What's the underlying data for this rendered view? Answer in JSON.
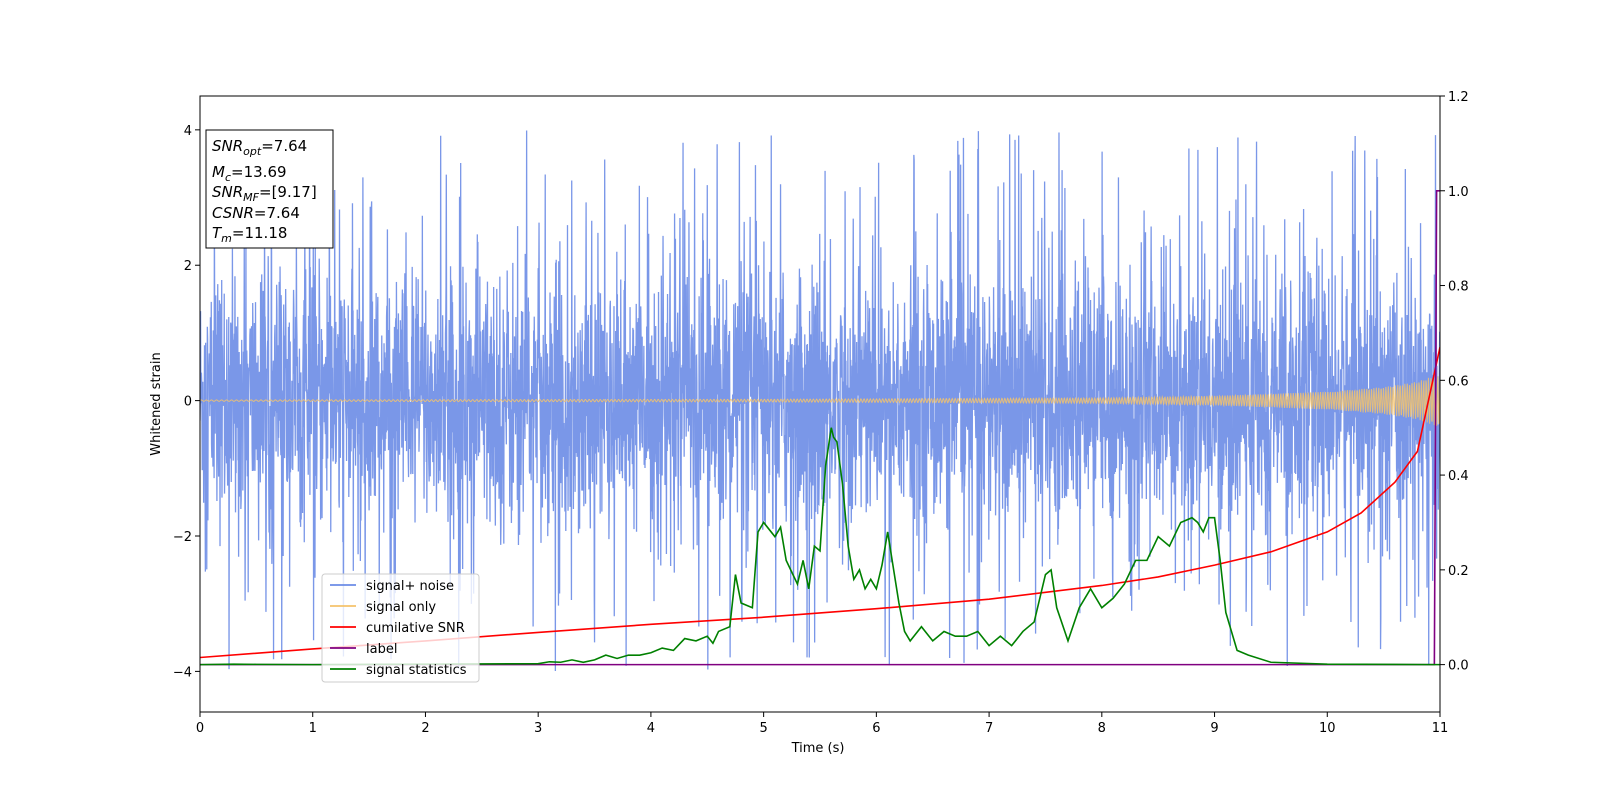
{
  "chart_data": {
    "type": "line",
    "xlabel": "Time (s)",
    "ylabel": "Whitened strain",
    "xlim": [
      0,
      11
    ],
    "ylim": [
      -4.6,
      4.5
    ],
    "y2lim": [
      -0.1,
      1.2
    ],
    "x_ticks": [
      "0",
      "1",
      "2",
      "3",
      "4",
      "5",
      "6",
      "7",
      "8",
      "9",
      "10",
      "11"
    ],
    "y_ticks": [
      "−4",
      "−2",
      "0",
      "2",
      "4"
    ],
    "y2_ticks": [
      "0.0",
      "0.2",
      "0.4",
      "0.6",
      "0.8",
      "1.0",
      "1.2"
    ],
    "grid": false,
    "legend_position": "lower-left",
    "info_box": {
      "snr_opt_label": "SNR",
      "snr_opt_sub": "opt",
      "snr_opt_value": "=7.64",
      "mc_label": "M",
      "mc_sub": "c",
      "mc_value": "=13.69",
      "snr_mf_label": "SNR",
      "snr_mf_sub": "MF",
      "snr_mf_value": "=[9.17]",
      "csnr_label": "CSNR",
      "csnr_value": "=7.64",
      "tm_label": "T",
      "tm_sub": "m",
      "tm_value": "=11.18"
    },
    "series": [
      {
        "name": "signal+ noise",
        "axis": "left",
        "color": "#6b8ce6",
        "description_values": "noise band roughly ±2.3 with spikes to about ±4",
        "envelope": {
          "typical": 2.3,
          "max_spike": 4.1,
          "min_spike": -4.0
        }
      },
      {
        "name": "signal only",
        "axis": "left",
        "color": "#f5c36b",
        "x": [
          0,
          5,
          8,
          9,
          10,
          10.5,
          10.8,
          11
        ],
        "amplitude": [
          0.01,
          0.02,
          0.04,
          0.07,
          0.13,
          0.2,
          0.28,
          0.4
        ]
      },
      {
        "name": "cumilative SNR",
        "axis": "right",
        "color": "#ff0000",
        "x": [
          0,
          1,
          2,
          3,
          4,
          5,
          6,
          7,
          8,
          8.5,
          9,
          9.5,
          10,
          10.3,
          10.6,
          10.8,
          11
        ],
        "y": [
          0.015,
          0.033,
          0.05,
          0.068,
          0.085,
          0.1,
          0.118,
          0.138,
          0.167,
          0.185,
          0.21,
          0.238,
          0.28,
          0.32,
          0.385,
          0.45,
          0.67
        ]
      },
      {
        "name": "label",
        "axis": "right",
        "color": "#800080",
        "x": [
          0,
          10.95,
          10.97,
          11
        ],
        "y": [
          0,
          0,
          1.0,
          1.0
        ]
      },
      {
        "name": "signal statistics",
        "axis": "right",
        "color": "#008000",
        "x": [
          0,
          0.3,
          0.5,
          1,
          2,
          3,
          3.1,
          3.2,
          3.3,
          3.4,
          3.5,
          3.6,
          3.7,
          3.8,
          3.9,
          4.0,
          4.1,
          4.2,
          4.3,
          4.4,
          4.5,
          4.55,
          4.6,
          4.7,
          4.75,
          4.8,
          4.9,
          4.95,
          5.0,
          5.1,
          5.15,
          5.2,
          5.3,
          5.35,
          5.4,
          5.45,
          5.5,
          5.55,
          5.6,
          5.62,
          5.65,
          5.7,
          5.75,
          5.8,
          5.85,
          5.9,
          5.95,
          6.0,
          6.05,
          6.1,
          6.2,
          6.25,
          6.3,
          6.4,
          6.5,
          6.6,
          6.7,
          6.8,
          6.9,
          7.0,
          7.1,
          7.2,
          7.3,
          7.4,
          7.5,
          7.55,
          7.6,
          7.7,
          7.8,
          7.9,
          8.0,
          8.1,
          8.2,
          8.3,
          8.4,
          8.5,
          8.6,
          8.7,
          8.8,
          8.85,
          8.9,
          8.95,
          9.0,
          9.05,
          9.1,
          9.2,
          9.3,
          9.5,
          10,
          11
        ],
        "y": [
          0,
          0.001,
          0.0005,
          0.0,
          0.001,
          0.002,
          0.006,
          0.005,
          0.01,
          0.005,
          0.01,
          0.02,
          0.013,
          0.02,
          0.02,
          0.025,
          0.035,
          0.03,
          0.055,
          0.05,
          0.06,
          0.045,
          0.07,
          0.08,
          0.19,
          0.13,
          0.12,
          0.28,
          0.3,
          0.27,
          0.29,
          0.22,
          0.17,
          0.22,
          0.16,
          0.25,
          0.24,
          0.42,
          0.5,
          0.48,
          0.47,
          0.38,
          0.25,
          0.18,
          0.2,
          0.16,
          0.18,
          0.16,
          0.21,
          0.28,
          0.13,
          0.07,
          0.05,
          0.08,
          0.05,
          0.07,
          0.06,
          0.06,
          0.07,
          0.04,
          0.06,
          0.04,
          0.07,
          0.09,
          0.19,
          0.2,
          0.12,
          0.05,
          0.12,
          0.16,
          0.12,
          0.14,
          0.17,
          0.22,
          0.22,
          0.27,
          0.25,
          0.3,
          0.31,
          0.3,
          0.28,
          0.31,
          0.31,
          0.22,
          0.11,
          0.03,
          0.02,
          0.005,
          0.001,
          0.0
        ]
      }
    ]
  }
}
